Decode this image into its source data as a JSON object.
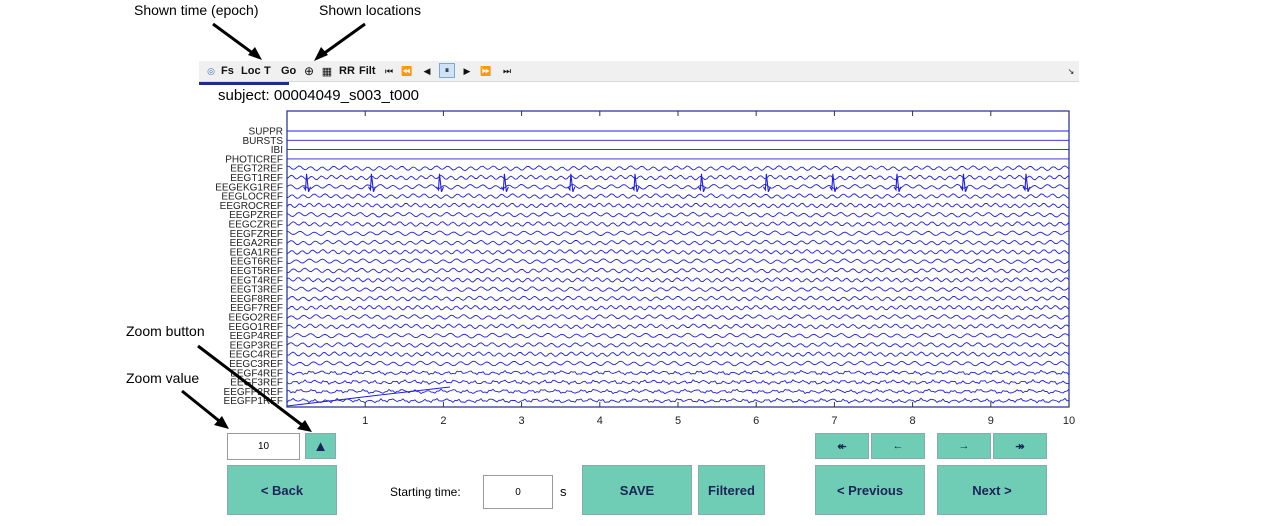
{
  "annotations": {
    "shown_time": "Shown time (epoch)",
    "shown_locations": "Shown locations",
    "zoom_button": "Zoom button",
    "zoom_value": "Zoom value"
  },
  "toolbar": {
    "fs": "Fs",
    "loc": "Loc",
    "t": "T",
    "go": "Go",
    "rr": "RR",
    "filt": "Filt",
    "first": "⏮",
    "fast_back": "⏪",
    "back": "◀",
    "pause": "⏸",
    "play": "▶",
    "fast_forward": "⏩",
    "last": "⏭",
    "corner": "↘"
  },
  "subject": "subject: 00004049_s003_t000",
  "channels": [
    "SUPPR",
    "BURSTS",
    "IBI",
    "PHOTICREF",
    "EEGT2REF",
    "EEGT1REF",
    "EEGEKG1REF",
    "EEGLOCREF",
    "EEGROCREF",
    "EEGPZREF",
    "EEGCZREF",
    "EEGFZREF",
    "EEGA2REF",
    "EEGA1REF",
    "EEGT6REF",
    "EEGT5REF",
    "EEGT4REF",
    "EEGT3REF",
    "EEGF8REF",
    "EEGF7REF",
    "EEGO2REF",
    "EEGO1REF",
    "EEGP4REF",
    "EEGP3REF",
    "EEGC4REF",
    "EEGC3REF",
    "EEGF4REF",
    "EEGF3REF",
    "EEGFP2REF",
    "EEGFP1REF"
  ],
  "chart_data": {
    "type": "line",
    "x_ticks": [
      "1",
      "2",
      "3",
      "4",
      "5",
      "6",
      "7",
      "8",
      "9",
      "10"
    ],
    "xlim": [
      0,
      10
    ],
    "ekg_peaks_s": [
      0.25,
      1.08,
      1.95,
      2.78,
      3.63,
      4.45,
      5.3,
      6.13,
      6.98,
      7.8,
      8.65,
      9.45
    ],
    "line_color": "#1f1fe0"
  },
  "controls": {
    "zoom_value": "10",
    "zoom_button": "▲",
    "back": "<  Back",
    "starting_time_label": "Starting time:",
    "starting_time_value": "0",
    "seconds_unit": "s",
    "save": "SAVE",
    "filtered": "Filtered",
    "previous": "< Previous",
    "next": "Next  >",
    "nav_fast_back": "↞",
    "nav_back": "←",
    "nav_forward": "→",
    "nav_fast_forward": "↠"
  },
  "colors": {
    "button_bg": "#6fcdb5",
    "plot_frame": "#1c2d8f",
    "trace": "#1f1fe0"
  }
}
